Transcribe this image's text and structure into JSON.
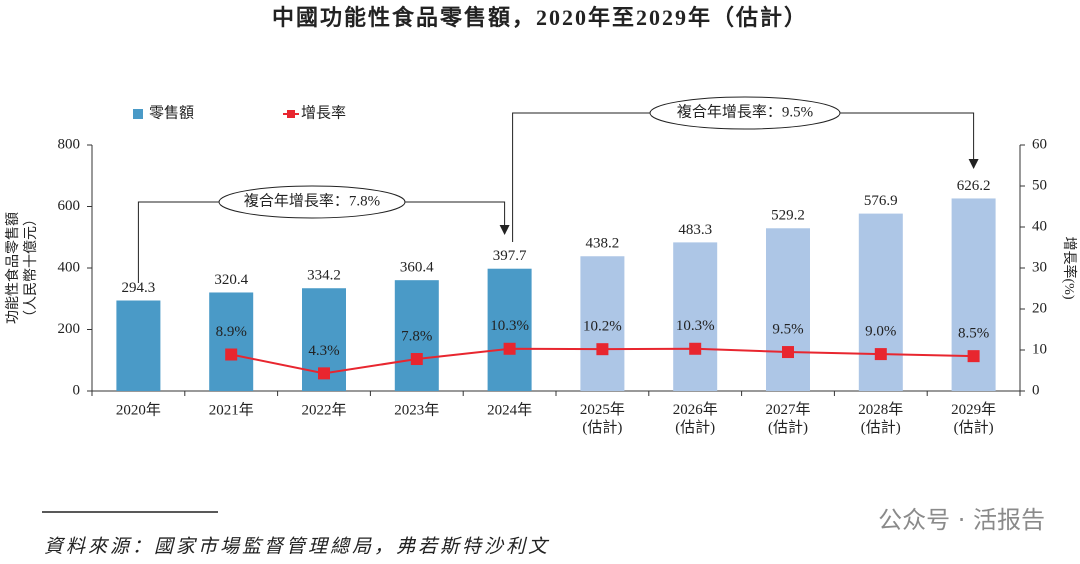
{
  "chart_data": {
    "type": "bar_line",
    "title": "中國功能性食品零售額，2020年至2029年（估計）",
    "categories": [
      "2020年",
      "2021年",
      "2022年",
      "2023年",
      "2024年",
      "2025年\n(估計)",
      "2026年\n(估計)",
      "2027年\n(估計)",
      "2028年\n(估計)",
      "2029年\n(估計)"
    ],
    "series": [
      {
        "name": "零售額",
        "type": "bar",
        "color": "#4a9ac7",
        "colors": [
          "#4a9ac7",
          "#4a9ac7",
          "#4a9ac7",
          "#4a9ac7",
          "#4a9ac7",
          "#adc6e6",
          "#adc6e6",
          "#adc6e6",
          "#adc6e6",
          "#adc6e6"
        ],
        "values": [
          294.3,
          320.4,
          334.2,
          360.4,
          397.7,
          438.2,
          483.3,
          529.2,
          576.9,
          626.2
        ]
      },
      {
        "name": "增長率",
        "type": "line",
        "axis": "y2",
        "color": "#e8262f",
        "values": [
          null,
          8.9,
          4.3,
          7.8,
          10.3,
          10.2,
          10.3,
          9.5,
          9.0,
          8.5
        ],
        "value_labels": [
          null,
          "8.9%",
          "4.3%",
          "7.8%",
          "10.3%",
          "10.2%",
          "10.3%",
          "9.5%",
          "9.0%",
          "8.5%"
        ]
      }
    ],
    "ylabel": "功能性食品零售額\n（人民幣十億元）",
    "y2label": "增長率(%)",
    "ylim": [
      0,
      800
    ],
    "yticks": [
      0,
      200,
      400,
      600,
      800
    ],
    "y2lim": [
      0,
      60
    ],
    "y2ticks": [
      0,
      10,
      20,
      30,
      40,
      50,
      60
    ],
    "annotations": [
      "複合年增長率：7.8%",
      "複合年增長率：9.5%"
    ],
    "source": "資料來源：國家市場監督管理總局，弗若斯特沙利文",
    "watermark": "公众号 · 活报告"
  }
}
